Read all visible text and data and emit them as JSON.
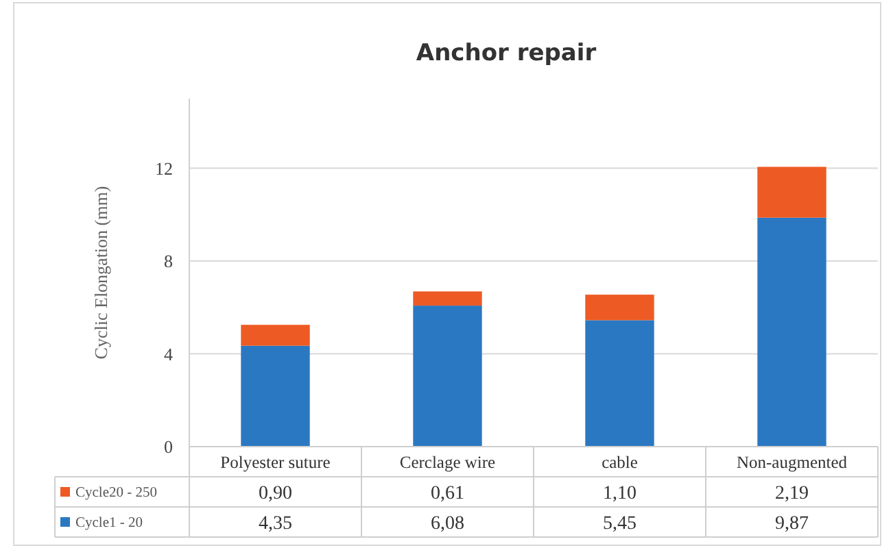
{
  "chart_data": {
    "type": "bar",
    "title": "Anchor repair",
    "ylabel": "Cyclic Elongation (mm)",
    "categories": [
      "Polyester suture",
      "Cerclage wire",
      "cable",
      "Non-augmented"
    ],
    "stacked": true,
    "series": [
      {
        "name": "Cycle1 - 20",
        "color": "#2b78c2",
        "values": [
          4.35,
          6.08,
          5.45,
          9.87
        ],
        "value_labels": [
          "4,35",
          "6,08",
          "5,45",
          "9,87"
        ]
      },
      {
        "name": "Cycle20 - 250",
        "color": "#ee5a24",
        "values": [
          0.9,
          0.61,
          1.1,
          2.19
        ],
        "value_labels": [
          "0,90",
          "0,61",
          "1,10",
          "2,19"
        ]
      }
    ],
    "ylim": [
      0,
      15
    ],
    "yticks": [
      0,
      4,
      8,
      12
    ],
    "grid": "y",
    "legend": "bottom"
  }
}
